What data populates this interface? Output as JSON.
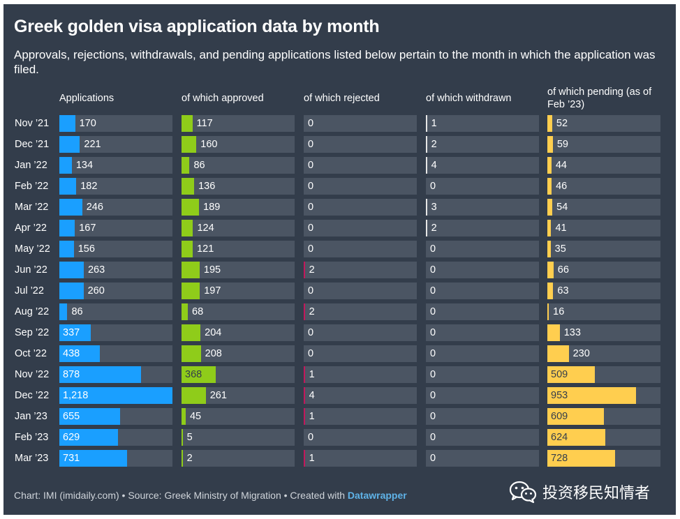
{
  "title": "Greek golden visa application data by month",
  "subtitle": "Approvals, rejections, withdrawals, and pending applications listed below pertain to the month in which the application was filed.",
  "footer": {
    "text": "Chart: IMI (imidaily.com) • Source: Greek Ministry of Migration • Created with ",
    "brand": "Datawrapper"
  },
  "watermark": {
    "label": "投资移民知情者",
    "icon": "wechat-icon"
  },
  "colors": {
    "background": "#333d4b",
    "track": "#4b5563",
    "applications": "#1a9fff",
    "approved": "#8fcc1a",
    "rejected": "#c2185b",
    "withdrawn": "#e6e6e6",
    "pending": "#ffce4f"
  },
  "chart_data": {
    "type": "bar",
    "categories": [
      "Nov ’21",
      "Dec ’21",
      "Jan ’22",
      "Feb ’22",
      "Mar ’22",
      "Apr ’22",
      "May ’22",
      "Jun ’22",
      "Jul ’22",
      "Aug ’22",
      "Sep ’22",
      "Oct ’22",
      "Nov ’22",
      "Dec ’22",
      "Jan ’23",
      "Feb ’23",
      "Mar ’23"
    ],
    "series": [
      {
        "name": "Applications",
        "values": [
          170,
          221,
          134,
          182,
          246,
          167,
          156,
          263,
          260,
          86,
          337,
          438,
          878,
          1218,
          655,
          629,
          731
        ],
        "labels": [
          "170",
          "221",
          "134",
          "182",
          "246",
          "167",
          "156",
          "263",
          "260",
          "86",
          "337",
          "438",
          "878",
          "1,218",
          "655",
          "629",
          "731"
        ]
      },
      {
        "name": "of which approved",
        "values": [
          117,
          160,
          86,
          136,
          189,
          124,
          121,
          195,
          197,
          68,
          204,
          208,
          368,
          261,
          45,
          5,
          2
        ],
        "labels": [
          "117",
          "160",
          "86",
          "136",
          "189",
          "124",
          "121",
          "195",
          "197",
          "68",
          "204",
          "208",
          "368",
          "261",
          "45",
          "5",
          "2"
        ]
      },
      {
        "name": "of which rejected",
        "values": [
          0,
          0,
          0,
          0,
          0,
          0,
          0,
          2,
          0,
          2,
          0,
          0,
          1,
          4,
          1,
          0,
          1
        ],
        "labels": [
          "0",
          "0",
          "0",
          "0",
          "0",
          "0",
          "0",
          "2",
          "0",
          "2",
          "0",
          "0",
          "1",
          "4",
          "1",
          "0",
          "1"
        ]
      },
      {
        "name": "of which withdrawn",
        "values": [
          1,
          2,
          4,
          0,
          3,
          2,
          0,
          0,
          0,
          0,
          0,
          0,
          0,
          0,
          0,
          0,
          0
        ],
        "labels": [
          "1",
          "2",
          "4",
          "0",
          "3",
          "2",
          "0",
          "0",
          "0",
          "0",
          "0",
          "0",
          "0",
          "0",
          "0",
          "0",
          "0"
        ]
      },
      {
        "name": "of which pending (as of Feb ’23)",
        "values": [
          52,
          59,
          44,
          46,
          54,
          41,
          35,
          66,
          63,
          16,
          133,
          230,
          509,
          953,
          609,
          624,
          728
        ],
        "labels": [
          "52",
          "59",
          "44",
          "46",
          "54",
          "41",
          "35",
          "66",
          "63",
          "16",
          "133",
          "230",
          "509",
          "953",
          "609",
          "624",
          "728"
        ]
      }
    ],
    "xlim": [
      0,
      1218
    ],
    "grid": false,
    "legend": "column headers"
  }
}
